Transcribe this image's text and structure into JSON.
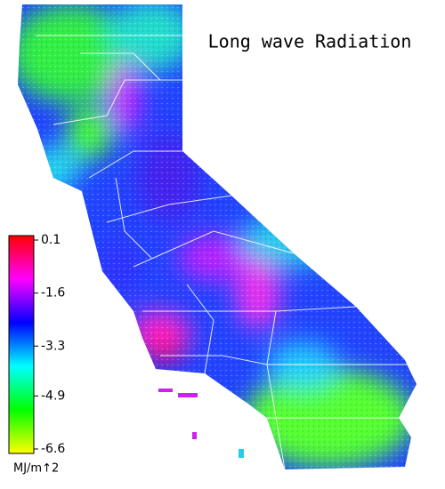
{
  "title": "Long wave Radiation",
  "colorbar": {
    "ticks": [
      0.1,
      -1.6,
      -3.3,
      -4.9,
      -6.6
    ],
    "colors": [
      "#ff0000",
      "#ff00ff",
      "#0000ff",
      "#00ffff",
      "#00ff00",
      "#ffff00"
    ],
    "unit": "MJ/m↑2"
  }
}
